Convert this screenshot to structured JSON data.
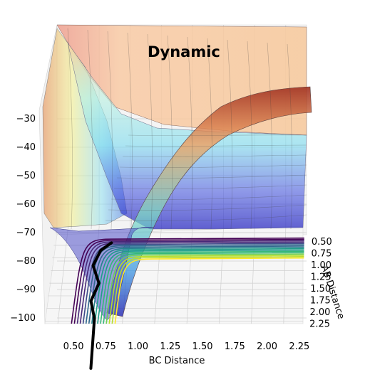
{
  "chart_data": {
    "type": "surface",
    "title": "Dynamic",
    "xlabel": "BC Distance",
    "ylabel": "AB Distance",
    "zlabel": "",
    "x_ticks": [
      "0.50",
      "0.75",
      "1.00",
      "1.25",
      "1.50",
      "1.75",
      "2.00",
      "2.25"
    ],
    "y_ticks": [
      "0.50",
      "0.75",
      "1.00",
      "1.25",
      "1.50",
      "1.75",
      "2.00",
      "2.25"
    ],
    "z_ticks": [
      "−30",
      "−40",
      "−50",
      "−60",
      "−70",
      "−80",
      "−90",
      "−100"
    ],
    "xlim": [
      0.4,
      2.4
    ],
    "ylim": [
      0.4,
      2.3
    ],
    "zlim": [
      -100,
      -25
    ],
    "surface_colormap": "jet",
    "contour_colormap": "viridis",
    "grid": true,
    "series": [
      {
        "type": "trajectory",
        "color": "#000000",
        "points": [
          {
            "x": 0.78,
            "y": 2.2
          },
          {
            "x": 0.74,
            "y": 1.85
          },
          {
            "x": 0.79,
            "y": 1.5
          },
          {
            "x": 0.73,
            "y": 1.15
          },
          {
            "x": 0.78,
            "y": 0.85
          },
          {
            "x": 0.86,
            "y": 0.7
          }
        ]
      }
    ]
  }
}
